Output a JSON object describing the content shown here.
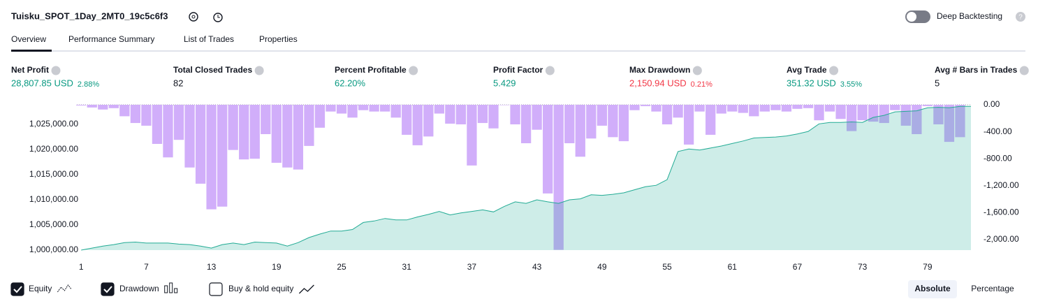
{
  "header": {
    "title": "Tuisku_SPOT_1Day_2MT0_19c5c6f3",
    "deep_backtesting": "Deep Backtesting",
    "deep_backtesting_on": false
  },
  "tabs": [
    "Overview",
    "Performance Summary",
    "List of Trades",
    "Properties"
  ],
  "stats": [
    {
      "label": "Net Profit",
      "value": "28,807.85 USD",
      "pct": "2.88%",
      "tone": "positive"
    },
    {
      "label": "Total Closed Trades",
      "value": "82",
      "tone": "neutral"
    },
    {
      "label": "Percent Profitable",
      "value": "62.20%",
      "tone": "positive"
    },
    {
      "label": "Profit Factor",
      "value": "5.429",
      "tone": "positive"
    },
    {
      "label": "Max Drawdown",
      "value": "2,150.94 USD",
      "pct": "0.21%",
      "tone": "negative"
    },
    {
      "label": "Avg Trade",
      "value": "351.32 USD",
      "pct": "3.55%",
      "tone": "positive"
    },
    {
      "label": "Avg # Bars in Trades",
      "value": "5",
      "tone": "neutral"
    }
  ],
  "chart_data": {
    "type": "combo",
    "x": [
      1,
      2,
      3,
      4,
      5,
      6,
      7,
      8,
      9,
      10,
      11,
      12,
      13,
      14,
      15,
      16,
      17,
      18,
      19,
      20,
      21,
      22,
      23,
      24,
      25,
      26,
      27,
      28,
      29,
      30,
      31,
      32,
      33,
      34,
      35,
      36,
      37,
      38,
      39,
      40,
      41,
      42,
      43,
      44,
      45,
      46,
      47,
      48,
      49,
      50,
      51,
      52,
      53,
      54,
      55,
      56,
      57,
      58,
      59,
      60,
      61,
      62,
      63,
      64,
      65,
      66,
      67,
      68,
      69,
      70,
      71,
      72,
      73,
      74,
      75,
      76,
      77,
      78,
      79,
      80,
      81,
      82
    ],
    "xlim": [
      0.6,
      83
    ],
    "xticks": [
      1,
      7,
      13,
      19,
      25,
      31,
      37,
      43,
      49,
      55,
      61,
      67,
      73,
      79
    ],
    "ylim": [
      1000000,
      1028900
    ],
    "yticks": [
      {
        "value": 1000000,
        "label": "1,000,000.00"
      },
      {
        "value": 1005000,
        "label": "1,005,000.00"
      },
      {
        "value": 1010000,
        "label": "1,010,000.00"
      },
      {
        "value": 1015000,
        "label": "1,015,000.00"
      },
      {
        "value": 1020000,
        "label": "1,020,000.00"
      },
      {
        "value": 1025000,
        "label": "1,025,000.00"
      }
    ],
    "y2lim": [
      -2155,
      0
    ],
    "y2ticks": [
      {
        "value": 0,
        "label": "0.00"
      },
      {
        "value": -400,
        "label": "-400.00"
      },
      {
        "value": -800,
        "label": "-800.00"
      },
      {
        "value": -1200,
        "label": "-1,200.00"
      },
      {
        "value": -1600,
        "label": "-1,600.00"
      },
      {
        "value": -2000,
        "label": "-2,000.00"
      }
    ],
    "series": [
      {
        "name": "Equity",
        "color": "#22ab94",
        "checked": true,
        "kind": "area",
        "values": [
          1000000,
          1000400,
          1000800,
          1001100,
          1001500,
          1001600,
          1001400,
          1001400,
          1001400,
          1001200,
          1001100,
          1000800,
          1000400,
          1001100,
          1001400,
          1001100,
          1001600,
          1001500,
          1001400,
          1000800,
          1001500,
          1002500,
          1003200,
          1003800,
          1003800,
          1004100,
          1005500,
          1005800,
          1006300,
          1006000,
          1006000,
          1006600,
          1007100,
          1007700,
          1007000,
          1007400,
          1007700,
          1008000,
          1007600,
          1008700,
          1009600,
          1009300,
          1010000,
          1009600,
          1009300,
          1010000,
          1010200,
          1011000,
          1010900,
          1011100,
          1011400,
          1012000,
          1012600,
          1012900,
          1014000,
          1019600,
          1020100,
          1019900,
          1020300,
          1020700,
          1021200,
          1021700,
          1022300,
          1022400,
          1022500,
          1022700,
          1023100,
          1023600,
          1025100,
          1025400,
          1025400,
          1025500,
          1025400,
          1026400,
          1026800,
          1027500,
          1027600,
          1027700,
          1028300,
          1028400,
          1028300,
          1028600
        ]
      },
      {
        "name": "Drawdown",
        "color": "#d1aefa",
        "checked": true,
        "kind": "bar",
        "axis": "y2",
        "values": [
          -10,
          -40,
          -70,
          -50,
          -170,
          -270,
          -310,
          -580,
          -780,
          -520,
          -930,
          -1170,
          -1550,
          -1510,
          -670,
          -810,
          -800,
          -435,
          -860,
          -930,
          -960,
          -610,
          -340,
          -100,
          -130,
          -190,
          -80,
          -100,
          -100,
          -190,
          -445,
          -600,
          -470,
          -130,
          -280,
          -290,
          -900,
          -270,
          -350,
          -5,
          -290,
          -570,
          -370,
          -1315,
          -2151,
          -570,
          -770,
          -500,
          -310,
          -480,
          -540,
          -80,
          -20,
          -100,
          -290,
          -190,
          -590,
          -100,
          -445,
          -130,
          -100,
          -120,
          -170,
          -100,
          -80,
          -100,
          -60,
          -50,
          -230,
          -100,
          -210,
          -390,
          -230,
          -250,
          -270,
          -80,
          -310,
          -435,
          -20,
          -290,
          -550,
          -480
        ]
      }
    ]
  },
  "extra_legend": {
    "label": "Buy & hold equity",
    "checked": false
  },
  "modes": [
    "Absolute",
    "Percentage"
  ]
}
